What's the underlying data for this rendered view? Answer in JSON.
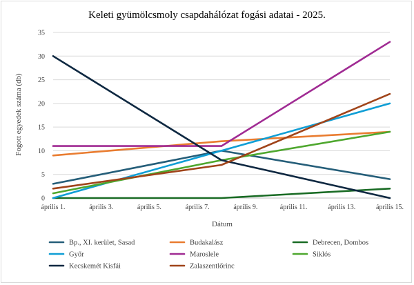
{
  "chart_data": {
    "type": "line",
    "title": "Keleti gyümölcsmoly csapdahálózat fogási adatai - 2025.",
    "xlabel": "Dátum",
    "ylabel": "Fogott egyedek száma (db)",
    "ylim": [
      0,
      35
    ],
    "yticks": [
      0,
      5,
      10,
      15,
      20,
      25,
      30,
      35
    ],
    "xlim": [
      1,
      15
    ],
    "x_tick_labels": [
      "április 1.",
      "április 3.",
      "április 5.",
      "április 7.",
      "április 9.",
      "április 11.",
      "április 13.",
      "április 15."
    ],
    "x_tick_values": [
      1,
      3,
      5,
      7,
      9,
      11,
      13,
      15
    ],
    "grid": "horizontal",
    "legend_position": "bottom",
    "series": [
      {
        "name": "Bp., XI. kerület, Sasad",
        "color": "#255e79",
        "x": [
          1,
          8,
          15
        ],
        "y": [
          3,
          10,
          4
        ]
      },
      {
        "name": "Budakalász",
        "color": "#e97c30",
        "x": [
          1,
          8,
          15
        ],
        "y": [
          9,
          12,
          14
        ]
      },
      {
        "name": "Debrecen, Dombos",
        "color": "#196b24",
        "x": [
          1,
          8,
          15
        ],
        "y": [
          0,
          0,
          2
        ]
      },
      {
        "name": "Győr",
        "color": "#0f9ed5",
        "x": [
          1,
          8,
          15
        ],
        "y": [
          0,
          10,
          20
        ]
      },
      {
        "name": "Maroslele",
        "color": "#a02b93",
        "x": [
          1,
          8,
          15
        ],
        "y": [
          11,
          11,
          33
        ]
      },
      {
        "name": "Siklós",
        "color": "#4ea72e",
        "x": [
          1,
          8,
          15
        ],
        "y": [
          1,
          8,
          14
        ]
      },
      {
        "name": "Kecskemét Kisfái",
        "color": "#0e2841",
        "x": [
          1,
          8,
          15
        ],
        "y": [
          30,
          8,
          0
        ]
      },
      {
        "name": "Zalaszentlőrinc",
        "color": "#a0441a",
        "x": [
          1,
          8,
          15
        ],
        "y": [
          2,
          7,
          22
        ]
      }
    ]
  }
}
